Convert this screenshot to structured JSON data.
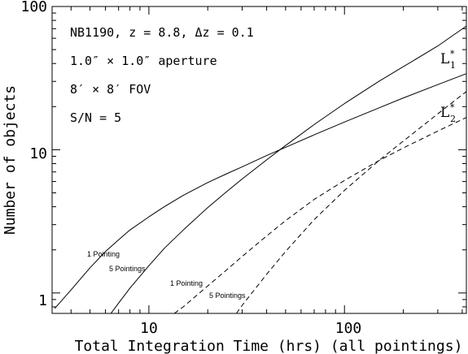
{
  "chart_data": {
    "type": "line",
    "x_scale": "log",
    "y_scale": "log",
    "xlim": [
      3.2,
      420
    ],
    "ylim": [
      0.72,
      100
    ],
    "xlabel": "Total Integration Time (hrs) (all pointings)",
    "ylabel": "Number of objects",
    "x_ticks": [
      {
        "value": 10,
        "label": "10"
      },
      {
        "value": 100,
        "label": "100"
      }
    ],
    "y_ticks": [
      {
        "value": 1,
        "label": "1"
      },
      {
        "value": 10,
        "label": "10"
      },
      {
        "value": 100,
        "label": "100"
      }
    ],
    "annotations": [
      "NB1190, z = 8.8, Δz = 0.1",
      "1.0″ × 1.0″ aperture",
      "8′ × 8′ FOV",
      "S/N = 5"
    ],
    "curve_labels": {
      "l1_pointing": "1 Pointing",
      "l1_5pointings": "5 Pointings",
      "l2_pointing": "1 Pointing",
      "l2_5pointings": "5 Pointings"
    },
    "lstar_labels": [
      {
        "text": "L",
        "sup": "*",
        "sub": "1"
      },
      {
        "text": "L",
        "sup": "*",
        "sub": "2"
      }
    ],
    "series": [
      {
        "id": "l1_1",
        "style": "solid",
        "x": [
          3.3,
          4,
          5,
          6,
          7,
          8,
          10,
          12,
          15,
          20,
          25,
          30,
          40,
          50,
          70,
          100,
          150,
          200,
          300,
          420
        ],
        "y": [
          0.78,
          1.05,
          1.5,
          1.95,
          2.35,
          2.75,
          3.4,
          4.0,
          4.8,
          5.9,
          6.8,
          7.6,
          9.1,
          10.4,
          12.7,
          15.6,
          19.6,
          23,
          28.5,
          34
        ]
      },
      {
        "id": "l1_5",
        "style": "solid",
        "x": [
          6.4,
          7,
          8,
          10,
          12,
          15,
          20,
          25,
          30,
          40,
          50,
          70,
          100,
          150,
          200,
          300,
          420
        ],
        "y": [
          0.72,
          0.85,
          1.08,
          1.55,
          2.05,
          2.75,
          3.95,
          5.1,
          6.25,
          8.5,
          10.7,
          15,
          21,
          30,
          38,
          53,
          73
        ]
      },
      {
        "id": "l2_1",
        "style": "dashed",
        "x": [
          13.5,
          15,
          20,
          25,
          30,
          40,
          50,
          70,
          100,
          150,
          200,
          300,
          420
        ],
        "y": [
          0.72,
          0.8,
          1.12,
          1.45,
          1.8,
          2.5,
          3.2,
          4.5,
          6.1,
          8.4,
          10.3,
          13.5,
          16.8
        ]
      },
      {
        "id": "l2_5",
        "style": "dashed",
        "x": [
          28,
          30,
          40,
          50,
          70,
          100,
          150,
          200,
          300,
          420
        ],
        "y": [
          0.72,
          0.82,
          1.35,
          1.95,
          3.25,
          5.2,
          8.4,
          11.5,
          17.8,
          25.5
        ]
      }
    ]
  }
}
